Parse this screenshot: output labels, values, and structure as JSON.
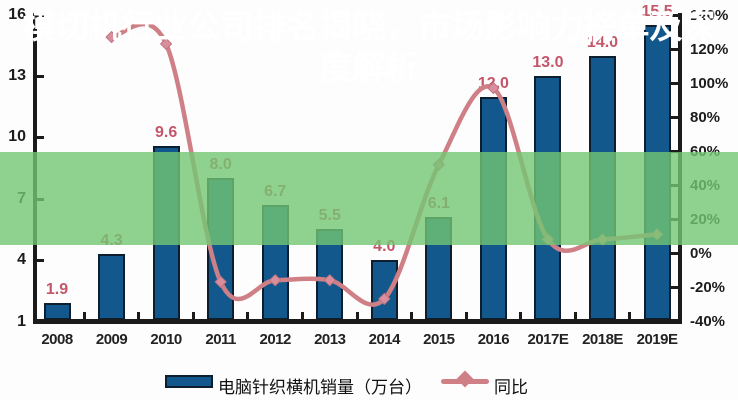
{
  "banner": {
    "title": "模切机行业公司排名揭晓，市场影响力榜单及深度解析",
    "bg_color": "#73c773",
    "bg_opacity": 0.8,
    "text_color": "#ffffff"
  },
  "chart_data": {
    "type": "combo-bar-line",
    "categories": [
      "2008",
      "2009",
      "2010",
      "2011",
      "2012",
      "2013",
      "2014",
      "2015",
      "2016",
      "2017E",
      "2018E",
      "2019E"
    ],
    "series": [
      {
        "name": "电脑针织横机销量（万台）",
        "type": "bar",
        "axis": "left",
        "color": "#12588c",
        "border_color": "#0d1e2e",
        "values": [
          1.9,
          4.3,
          9.6,
          8.0,
          6.7,
          5.5,
          4.0,
          6.1,
          12.0,
          13.0,
          14.0,
          15.5
        ],
        "labels": [
          "1.9",
          "4.3",
          "9.6",
          "8.0",
          "6.7",
          "5.5",
          "4.0",
          "6.1",
          "12.0",
          "13.0",
          "14.0",
          "15.5"
        ]
      },
      {
        "name": "同比",
        "type": "line",
        "axis": "right",
        "color": "#cf7f86",
        "marker": "diamond",
        "marker_color": "#d88f9b",
        "marker_edge_color": "#c27380",
        "values": [
          null,
          127,
          123,
          -17,
          -16,
          -16,
          -27,
          52,
          97,
          8,
          8,
          11
        ]
      }
    ],
    "left_axis": {
      "min": 1,
      "max": 16,
      "ticks": [
        16,
        13,
        10,
        7,
        4,
        1
      ]
    },
    "right_axis": {
      "min": -40,
      "max": 140,
      "tick_values": [
        140,
        120,
        100,
        80,
        60,
        40,
        20,
        0,
        -20,
        -40
      ],
      "tick_labels": [
        "140%",
        "120%",
        "100%",
        "80%",
        "60%",
        "40%",
        "20%",
        "0%",
        "-20%",
        "-40%"
      ]
    },
    "bar_label_color": "#c4566a",
    "legend": [
      {
        "label": "电脑针织横机销量（万台）",
        "marker": "bar-swatch"
      },
      {
        "label": "同比",
        "marker": "line-diamond-swatch"
      }
    ],
    "legend_position": "bottom",
    "grid": false,
    "title": ""
  }
}
